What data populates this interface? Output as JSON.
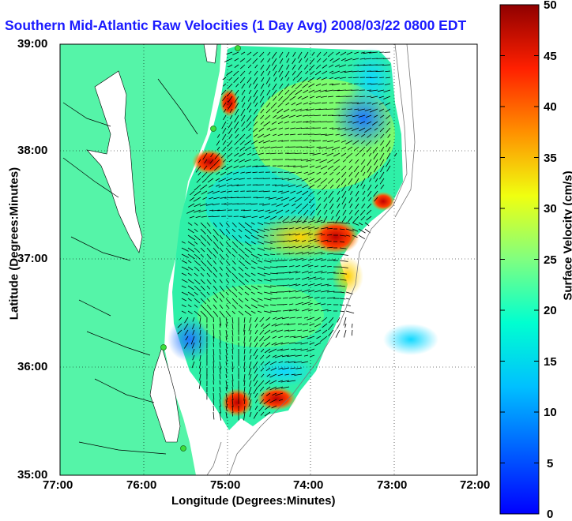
{
  "title": "Southern Mid-Atlantic Raw Velocities (1 Day Avg) 2008/03/22 0800 EDT",
  "axes": {
    "ylabel": "Latitude (Degrees:Minutes)",
    "xlabel": "Longitude (Degrees:Minutes)",
    "yticks": [
      "39:00",
      "38:00",
      "37:00",
      "36:00",
      "35:00"
    ],
    "xticks": [
      "77:00",
      "76:00",
      "75:00",
      "74:00",
      "73:00",
      "72:00"
    ]
  },
  "colorbar": {
    "label": "Surface Velocity (cm/s)",
    "ticks": [
      "50",
      "45",
      "40",
      "35",
      "30",
      "25",
      "20",
      "15",
      "10",
      "5",
      "0"
    ],
    "range": [
      0,
      50
    ],
    "colormap": "jet"
  },
  "colors": {
    "land": "#55f4a8",
    "title": "#1a1aff",
    "station": "#3adf3a"
  }
}
